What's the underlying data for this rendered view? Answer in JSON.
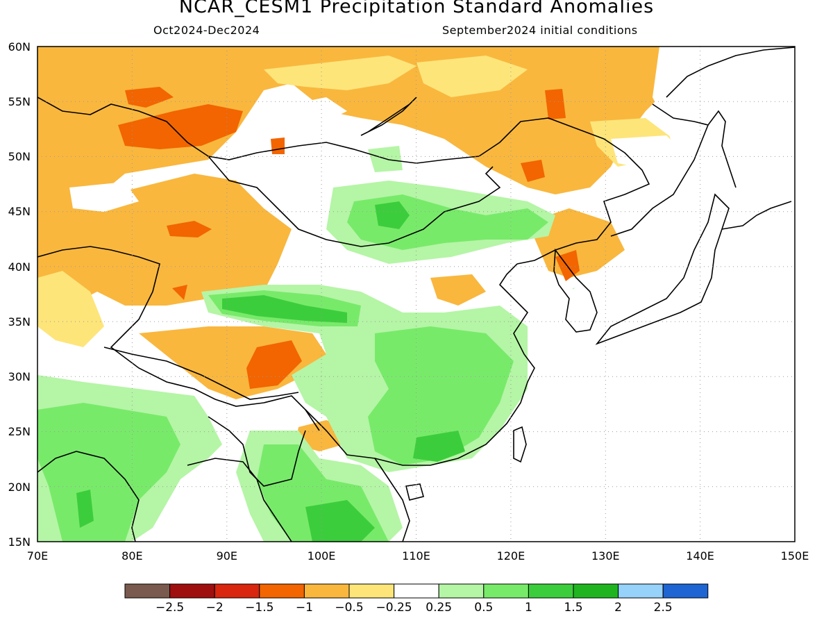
{
  "title": "NCAR_CESM1 Precipitation Standard Anomalies",
  "period": "Oct2024-Dec2024",
  "init": "September2024 initial conditions",
  "lat_labels": [
    "60N",
    "55N",
    "50N",
    "45N",
    "40N",
    "35N",
    "30N",
    "25N",
    "20N",
    "15N"
  ],
  "lon_labels": [
    "70E",
    "80E",
    "90E",
    "100E",
    "110E",
    "120E",
    "130E",
    "140E",
    "150E"
  ],
  "colorbar": {
    "colors": [
      "#7a5a4e",
      "#a00f0f",
      "#d8260f",
      "#f26500",
      "#f9b73e",
      "#fde57a",
      "#ffffff",
      "#b5f5a6",
      "#78ea6a",
      "#3ccd3c",
      "#20b520",
      "#96d2fa",
      "#1e64d2"
    ],
    "labels": [
      "-2.5",
      "-2",
      "-1.5",
      "-1",
      "-0.5",
      "-0.25",
      "0.25",
      "0.5",
      "1",
      "1.5",
      "2",
      "2.5"
    ]
  }
}
